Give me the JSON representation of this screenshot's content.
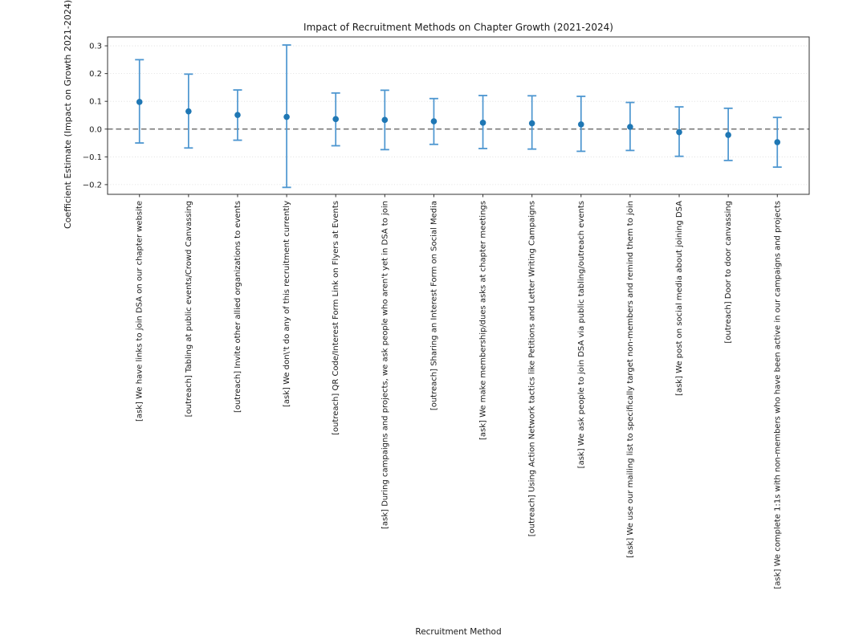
{
  "chart_data": {
    "type": "scatter",
    "subtype": "errorbar-coefficient-plot",
    "title": "Impact of Recruitment Methods on Chapter Growth (2021-2024)",
    "xlabel": "Recruitment Method",
    "ylabel": "Coefficient Estimate (Impact on Growth 2021-2024)",
    "ylim": [
      -0.235,
      0.332
    ],
    "yticks": [
      {
        "value": 0.3,
        "label": "0.3"
      },
      {
        "value": 0.2,
        "label": "0.2"
      },
      {
        "value": 0.1,
        "label": "0.1"
      },
      {
        "value": 0.0,
        "label": "0.0"
      },
      {
        "value": -0.1,
        "label": "−0.1"
      },
      {
        "value": -0.2,
        "label": "−0.2"
      }
    ],
    "grid": "horizontal-dotted",
    "legend": "none",
    "reference_line": {
      "y": 0,
      "style": "dashed",
      "color": "#5a5a5a"
    },
    "categories": [
      "[ask] We have links to join DSA on our chapter website",
      "[outreach] Tabling at public events/Crowd Canvassing",
      "[outreach] Invite other allied organizations to events",
      "[ask] We don\\'t do any of this recruitment currently",
      "[outreach] QR Code/Interest Form Link on Flyers at Events",
      "[ask] During campaigns and projects, we ask people who aren't yet in DSA to join",
      "[outreach] Sharing an Interest Form on Social Media",
      "[ask] We make membership/dues asks at chapter meetings",
      "[outreach] Using Action Network tactics like Petitions and Letter Writing Campaigns",
      "[ask] We ask people to join DSA via public tabling/outreach events",
      "[ask] We use our mailing list to specifically target non-members and remind them to join",
      "[ask] We post on social media about joining DSA",
      "[outreach] Door to door canvassing",
      "[ask] We complete 1:1s with non-members who have been active in our campaigns and projects"
    ],
    "points": [
      {
        "estimate": 0.098,
        "ci_low": -0.05,
        "ci_high": 0.25
      },
      {
        "estimate": 0.064,
        "ci_low": -0.068,
        "ci_high": 0.198
      },
      {
        "estimate": 0.051,
        "ci_low": -0.04,
        "ci_high": 0.141
      },
      {
        "estimate": 0.044,
        "ci_low": -0.21,
        "ci_high": 0.303
      },
      {
        "estimate": 0.036,
        "ci_low": -0.06,
        "ci_high": 0.13
      },
      {
        "estimate": 0.033,
        "ci_low": -0.074,
        "ci_high": 0.14
      },
      {
        "estimate": 0.028,
        "ci_low": -0.055,
        "ci_high": 0.11
      },
      {
        "estimate": 0.023,
        "ci_low": -0.07,
        "ci_high": 0.121
      },
      {
        "estimate": 0.021,
        "ci_low": -0.072,
        "ci_high": 0.12
      },
      {
        "estimate": 0.017,
        "ci_low": -0.08,
        "ci_high": 0.118
      },
      {
        "estimate": 0.008,
        "ci_low": -0.077,
        "ci_high": 0.096
      },
      {
        "estimate": -0.011,
        "ci_low": -0.098,
        "ci_high": 0.08
      },
      {
        "estimate": -0.021,
        "ci_low": -0.113,
        "ci_high": 0.075
      },
      {
        "estimate": -0.047,
        "ci_low": -0.137,
        "ci_high": 0.042
      }
    ],
    "colors": {
      "marker": "#1f77b4",
      "errorbar": "#4d96d0",
      "grid": "#d9d9d9",
      "zero_line": "#5a5a5a",
      "spine": "#333333"
    }
  }
}
